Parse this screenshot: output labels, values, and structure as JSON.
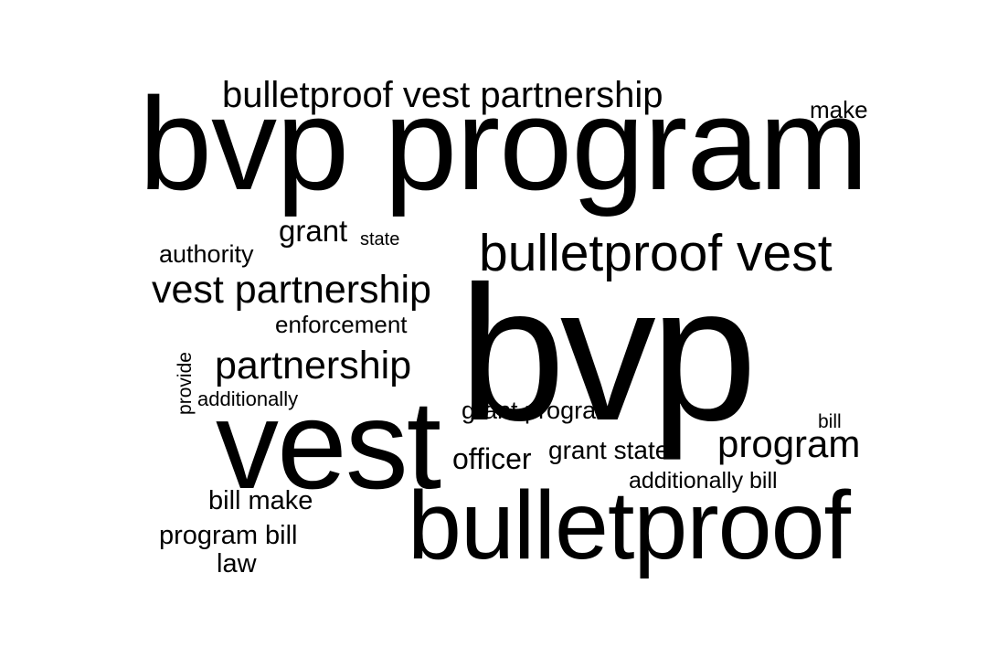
{
  "word_cloud": {
    "background": "#ffffff",
    "text_color": "#000000",
    "words": {
      "bvp_program": "bvp program",
      "bvp": "bvp",
      "vest": "vest",
      "bulletproof": "bulletproof",
      "bulletproof_vest_partnership": "bulletproof vest partnership",
      "bulletproof_vest": "bulletproof vest",
      "vest_partnership": "vest partnership",
      "partnership": "partnership",
      "program": "program",
      "grant": "grant",
      "state": "state",
      "authority": "authority",
      "enforcement": "enforcement",
      "additionally": "additionally",
      "provide": "provide",
      "grant_program": "grant program",
      "make": "make",
      "bill": "bill",
      "grant_state": "grant state",
      "officer": "officer",
      "additionally_bill": "additionally bill",
      "bill_make": "bill make",
      "program_bill": "program bill",
      "law": "law"
    }
  }
}
